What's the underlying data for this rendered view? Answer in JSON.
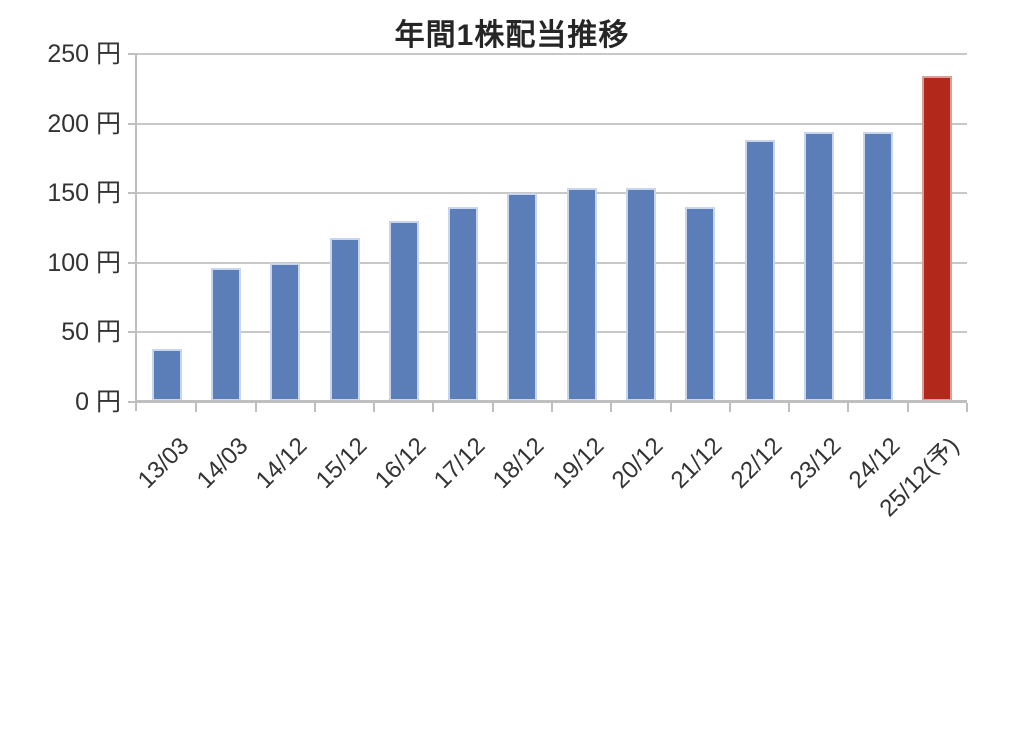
{
  "chart_data": {
    "type": "bar",
    "title": "年間1株配当推移",
    "categories": [
      "13/03",
      "14/03",
      "14/12",
      "15/12",
      "16/12",
      "17/12",
      "18/12",
      "19/12",
      "20/12",
      "21/12",
      "22/12",
      "23/12",
      "24/12",
      "25/12(予)"
    ],
    "values": [
      38,
      96,
      100,
      118,
      130,
      140,
      150,
      154,
      154,
      140,
      188,
      194,
      194,
      234
    ],
    "unit": "円",
    "forecast_index": 13,
    "y_ticks": [
      0,
      50,
      100,
      150,
      200,
      250
    ],
    "y_tick_labels": [
      "0 円",
      "50 円",
      "100 円",
      "150 円",
      "200 円",
      "250 円"
    ],
    "ylim": [
      0,
      250
    ],
    "grid": true,
    "legend": false,
    "x_label_rotation_deg": 45,
    "colors": {
      "bar": "#5B7EB9",
      "bar_edge": "#C9D5EB",
      "forecast_bar": "#B2281A",
      "forecast_bar_edge": "#D8A198",
      "gridline": "#C8C8C8",
      "axis": "#BFBFBF",
      "label_text": "#333333",
      "title_text": "#262626",
      "background": "#FFFFFF"
    }
  }
}
